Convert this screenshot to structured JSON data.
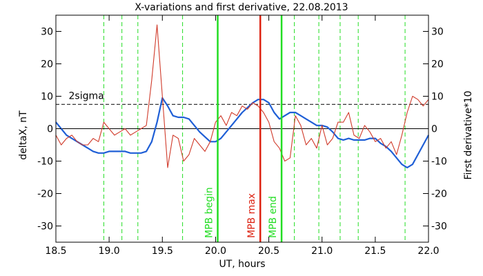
{
  "chart_data": {
    "type": "line",
    "title": "X-variations and first derivative, 22.08.2013",
    "xlabel": "UT, hours",
    "ylabel_left": "deltaX, nT",
    "ylabel_right": "First derivative*10",
    "xlim": [
      18.5,
      22.0
    ],
    "ylim": [
      -35,
      35
    ],
    "x_ticks": [
      "18.5",
      "19.0",
      "19.5",
      "20.0",
      "20.5",
      "21.0",
      "21.5",
      "22.0"
    ],
    "y_ticks": [
      "-30",
      "-20",
      "-10",
      "0",
      "10",
      "20",
      "30"
    ],
    "colors": {
      "deltaX": "#1f5fd6",
      "derivative": "#d03a2a",
      "green": "#22dd22",
      "red": "#dd2211",
      "axis": "#000000"
    },
    "sigma_label": "2sigma",
    "sigma_level": 7.5,
    "series": [
      {
        "key": "deltaX",
        "x": [
          18.5,
          18.55,
          18.6,
          18.65,
          18.7,
          18.75,
          18.8,
          18.85,
          18.9,
          18.95,
          19.0,
          19.05,
          19.1,
          19.15,
          19.2,
          19.25,
          19.3,
          19.35,
          19.4,
          19.45,
          19.5,
          19.55,
          19.6,
          19.65,
          19.7,
          19.75,
          19.8,
          19.85,
          19.9,
          19.95,
          20.0,
          20.05,
          20.1,
          20.15,
          20.2,
          20.25,
          20.3,
          20.35,
          20.4,
          20.45,
          20.5,
          20.55,
          20.6,
          20.65,
          20.7,
          20.75,
          20.8,
          20.85,
          20.9,
          20.95,
          21.0,
          21.05,
          21.1,
          21.15,
          21.2,
          21.25,
          21.3,
          21.35,
          21.4,
          21.45,
          21.5,
          21.55,
          21.6,
          21.65,
          21.7,
          21.75,
          21.8,
          21.85,
          21.9,
          21.95,
          22.0
        ],
        "values": [
          2,
          0,
          -2,
          -3,
          -4,
          -5,
          -6,
          -7,
          -7.5,
          -7.5,
          -7,
          -7,
          -7,
          -7,
          -7.5,
          -7.5,
          -7.5,
          -7,
          -4,
          2,
          9.5,
          7,
          4,
          3.5,
          3.5,
          3,
          1,
          -1,
          -2.5,
          -4,
          -4,
          -3,
          -1,
          1,
          3,
          5,
          6.5,
          8,
          9,
          9,
          8,
          5,
          3,
          4,
          5,
          5,
          4,
          3,
          2,
          1,
          1,
          0.5,
          -1,
          -3,
          -3.5,
          -3,
          -3.5,
          -3.5,
          -3.5,
          -3,
          -3,
          -4.5,
          -5.5,
          -7,
          -9,
          -11,
          -12,
          -11,
          -8,
          -5,
          -2
        ]
      },
      {
        "key": "derivative",
        "x": [
          18.5,
          18.55,
          18.6,
          18.65,
          18.7,
          18.75,
          18.8,
          18.85,
          18.9,
          18.95,
          19.0,
          19.05,
          19.1,
          19.15,
          19.2,
          19.25,
          19.3,
          19.35,
          19.4,
          19.45,
          19.5,
          19.55,
          19.6,
          19.65,
          19.7,
          19.75,
          19.8,
          19.85,
          19.9,
          19.95,
          20.0,
          20.05,
          20.1,
          20.15,
          20.2,
          20.25,
          20.3,
          20.35,
          20.4,
          20.45,
          20.5,
          20.55,
          20.6,
          20.65,
          20.7,
          20.75,
          20.8,
          20.85,
          20.9,
          20.95,
          21.0,
          21.05,
          21.1,
          21.15,
          21.2,
          21.25,
          21.3,
          21.35,
          21.4,
          21.45,
          21.5,
          21.55,
          21.6,
          21.65,
          21.7,
          21.75,
          21.8,
          21.85,
          21.9,
          21.95,
          22.0
        ],
        "values": [
          -2,
          -5,
          -3,
          -2,
          -4,
          -5,
          -5,
          -3,
          -4,
          2,
          0,
          -2,
          -1,
          0,
          -2,
          -1,
          0,
          1,
          15,
          32,
          10,
          -12,
          -2,
          -3,
          -10,
          -8,
          -3,
          -5,
          -7,
          -4,
          2,
          4,
          1,
          5,
          4,
          7,
          6,
          8,
          7,
          5,
          2,
          -4,
          -6,
          -10,
          -9,
          4,
          1,
          -5,
          -3,
          -6,
          1,
          -5,
          -3,
          2,
          2,
          5,
          -2,
          -3,
          1,
          -1,
          -4,
          -3,
          -6,
          -4,
          -8,
          -2,
          5,
          10,
          9,
          7,
          9
        ]
      }
    ],
    "green_dashed_x": [
      18.95,
      19.12,
      19.27,
      19.69,
      20.74,
      20.97,
      21.17,
      21.34,
      21.78
    ],
    "markers": [
      {
        "x": 20.02,
        "label": "MPB begin",
        "color_key": "green"
      },
      {
        "x": 20.42,
        "label": "MPB max",
        "color_key": "red"
      },
      {
        "x": 20.62,
        "label": "MPB end",
        "color_key": "green"
      }
    ],
    "legend": "none",
    "grid": false
  }
}
